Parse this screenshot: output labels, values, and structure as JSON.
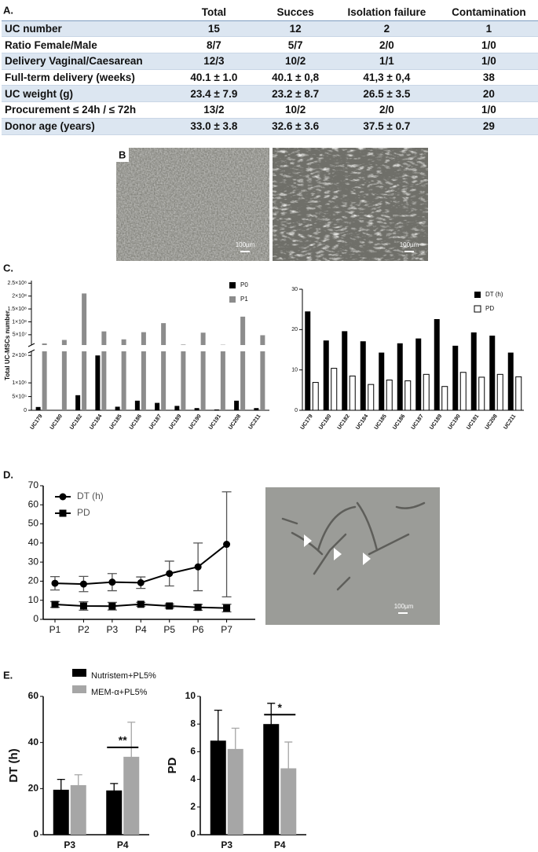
{
  "table": {
    "label": "A.",
    "header": [
      "Total",
      "Succes",
      "Isolation failure",
      "Contamination"
    ],
    "rows": [
      [
        "UC number",
        "15",
        "12",
        "2",
        "1"
      ],
      [
        "Ratio Female/Male",
        "8/7",
        "5/7",
        "2/0",
        "1/0"
      ],
      [
        "Delivery Vaginal/Caesarean",
        "12/3",
        "10/2",
        "1/1",
        "1/0"
      ],
      [
        "Full-term delivery (weeks)",
        "40.1 ± 1.0",
        "40.1 ± 0,8",
        "41,3 ± 0,4",
        "38"
      ],
      [
        "UC weight (g)",
        "23.4 ± 7.9",
        "23.2 ± 8.7",
        "26.5 ± 3.5",
        "20"
      ],
      [
        "Procurement ≤ 24h / ≤ 72h",
        "13/2",
        "10/2",
        "2/0",
        "1/0"
      ],
      [
        "Donor age (years)",
        "33.0 ± 3.8",
        "32.6 ± 3.6",
        "37.5 ± 0.7",
        "29"
      ]
    ]
  },
  "images": {
    "label": "B",
    "scale_labels": [
      "100µm",
      "100µm",
      "100µm"
    ]
  },
  "chart_data": [
    {
      "type": "bar",
      "panel": "C.",
      "ylabel": "Total UC-MSCs number",
      "categories": [
        "UC179",
        "UC180",
        "UC182",
        "UC184",
        "UC185",
        "UC186",
        "UC187",
        "UC189",
        "UC190",
        "UC191",
        "UC208",
        "UC211"
      ],
      "series": [
        {
          "name": "P0",
          "color": "#000000",
          "values": [
            120000,
            0,
            550000,
            2000000,
            130000,
            350000,
            270000,
            160000,
            80000,
            30000,
            350000,
            80000
          ]
        },
        {
          "name": "P1",
          "color": "#8c8c8c",
          "values": [
            16000000,
            30000000,
            210000000,
            63000000,
            32000000,
            60000000,
            95000000,
            12000000,
            58000000,
            11000000,
            120000000,
            48000000
          ]
        }
      ],
      "ylim": [
        0,
        2150000
      ],
      "yticks": [
        0,
        {
          "value": 500000,
          "label": "5×10⁵"
        },
        {
          "value": 1000000,
          "label": "1×10⁶"
        },
        {
          "value": 2000000,
          "label": "2×10⁶"
        }
      ],
      "ylim_upper": [
        10000000,
        260000000
      ],
      "yticks_upper": [
        {
          "value": 50000000,
          "label": "5×10⁷"
        },
        {
          "value": 100000000,
          "label": "1×10⁸"
        },
        {
          "value": 150000000,
          "label": "1.5×10⁸"
        },
        {
          "value": 200000000,
          "label": "2×10⁸"
        },
        {
          "value": 250000000,
          "label": "2.5×10⁸"
        }
      ],
      "legend": "top-right"
    },
    {
      "type": "bar",
      "categories": [
        "UC179",
        "UC180",
        "UC182",
        "UC184",
        "UC185",
        "UC186",
        "UC187",
        "UC189",
        "UC190",
        "UC191",
        "UC208",
        "UC211"
      ],
      "series": [
        {
          "name": "DT (h)",
          "color": "#000000",
          "values": [
            24.5,
            17.3,
            19.6,
            17.1,
            14.3,
            16.6,
            17.8,
            22.6,
            16.0,
            19.3,
            18.5,
            14.3
          ]
        },
        {
          "name": "PD",
          "color": "#ffffff",
          "edgecolor": "#000000",
          "values": [
            6.9,
            10.4,
            8.5,
            6.4,
            7.5,
            7.3,
            8.9,
            5.9,
            9.4,
            8.2,
            8.9,
            8.3
          ]
        }
      ],
      "ylim": [
        0,
        30
      ],
      "yticks": [
        0,
        10,
        20,
        30
      ],
      "legend": "top-right"
    },
    {
      "type": "line",
      "panel": "D.",
      "categories": [
        "P1",
        "P2",
        "P3",
        "P4",
        "P5",
        "P6",
        "P7"
      ],
      "series": [
        {
          "name": "DT (h)",
          "color": "#000000",
          "marker": "circle",
          "values": [
            18.9,
            18.5,
            19.5,
            19.2,
            24.0,
            27.5,
            39.3
          ],
          "errors": [
            3.5,
            4.0,
            4.5,
            3.0,
            6.5,
            12.5,
            27.5
          ]
        },
        {
          "name": "PD",
          "color": "#000000",
          "marker": "square",
          "values": [
            7.8,
            7.0,
            6.9,
            7.9,
            7.0,
            6.3,
            5.9
          ],
          "errors": [
            1.5,
            2.2,
            2.0,
            1.0,
            1.0,
            1.5,
            2.0
          ]
        }
      ],
      "ylim": [
        0,
        70
      ],
      "yticks": [
        0,
        10,
        20,
        30,
        40,
        50,
        60,
        70
      ],
      "legend": "top-left"
    },
    {
      "type": "bar",
      "panel": "E.",
      "ylabel": "DT (h)",
      "categories": [
        "P3",
        "P4"
      ],
      "series": [
        {
          "name": "Nutristem+PL5%",
          "color": "#000000",
          "values": [
            19.5,
            19.2
          ],
          "errors": [
            4.5,
            3.0
          ]
        },
        {
          "name": "MEM-α+PL5%",
          "color": "#a6a6a6",
          "values": [
            21.5,
            33.8
          ],
          "errors": [
            4.5,
            15.0
          ]
        }
      ],
      "ylim": [
        0,
        60
      ],
      "yticks": [
        0,
        20,
        40,
        60
      ],
      "annotations": [
        {
          "text": "**",
          "category": 1
        }
      ],
      "legend": "top-left"
    },
    {
      "type": "bar",
      "ylabel": "PD",
      "categories": [
        "P3",
        "P4"
      ],
      "series": [
        {
          "name": "Nutristem+PL5%",
          "color": "#000000",
          "values": [
            6.8,
            8.0
          ],
          "errors": [
            2.2,
            1.5
          ]
        },
        {
          "name": "MEM-α+PL5%",
          "color": "#a6a6a6",
          "values": [
            6.2,
            4.8
          ],
          "errors": [
            1.5,
            1.9
          ]
        }
      ],
      "ylim": [
        0,
        10
      ],
      "yticks": [
        0,
        2,
        4,
        6,
        8,
        10
      ],
      "annotations": [
        {
          "text": "*",
          "category": 1
        }
      ],
      "legend": false
    }
  ]
}
